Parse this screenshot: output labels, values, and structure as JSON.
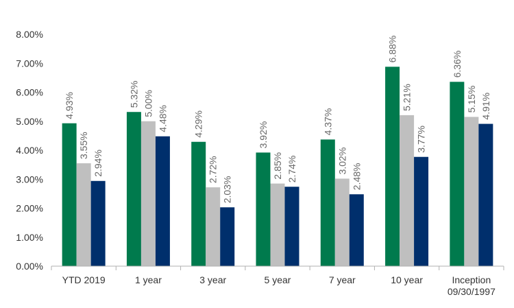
{
  "chart_data": {
    "type": "bar",
    "title": "",
    "xlabel": "",
    "ylabel": "",
    "ylim": [
      0,
      8
    ],
    "y_ticks": [
      "0.00%",
      "1.00%",
      "2.00%",
      "3.00%",
      "4.00%",
      "5.00%",
      "6.00%",
      "7.00%",
      "8.00%"
    ],
    "grid": false,
    "legend": "none",
    "categories": [
      [
        "YTD 2019"
      ],
      [
        "1 year"
      ],
      [
        "3 year"
      ],
      [
        "5 year"
      ],
      [
        "7 year"
      ],
      [
        "10 year"
      ],
      [
        "Inception",
        "09/30/1997"
      ]
    ],
    "series": [
      {
        "color": "#007a4d",
        "values": [
          4.93,
          5.32,
          4.29,
          3.92,
          4.37,
          6.88,
          6.36
        ],
        "labels": [
          "4.93%",
          "5.32%",
          "4.29%",
          "3.92%",
          "4.37%",
          "6.88%",
          "6.36%"
        ]
      },
      {
        "color": "#bfbfbf",
        "values": [
          3.55,
          5.0,
          2.72,
          2.85,
          3.02,
          5.21,
          5.15
        ],
        "labels": [
          "3.55%",
          "5.00%",
          "2.72%",
          "2.85%",
          "3.02%",
          "5.21%",
          "5.15%"
        ]
      },
      {
        "color": "#002f6c",
        "values": [
          2.94,
          4.48,
          2.03,
          2.74,
          2.48,
          3.77,
          4.91
        ],
        "labels": [
          "2.94%",
          "4.48%",
          "2.03%",
          "2.74%",
          "2.48%",
          "3.77%",
          "4.91%"
        ]
      }
    ]
  }
}
